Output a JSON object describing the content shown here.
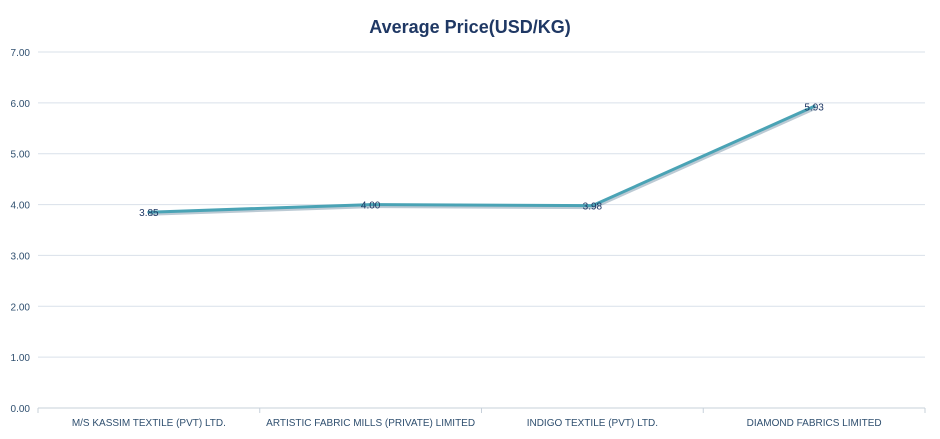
{
  "chart_data": {
    "type": "line",
    "title": "Average Price(USD/KG)",
    "xlabel": "",
    "ylabel": "",
    "categories": [
      "M/S KASSIM TEXTILE (PVT) LTD.",
      "ARTISTIC FABRIC MILLS (PRIVATE) LIMITED",
      "INDIGO TEXTILE (PVT) LTD.",
      "DIAMOND FABRICS LIMITED"
    ],
    "values": [
      3.85,
      4.0,
      3.98,
      5.93
    ],
    "data_labels": [
      "3.85",
      "4.00",
      "3.98",
      "5.93"
    ],
    "yticks": [
      "0.00",
      "1.00",
      "2.00",
      "3.00",
      "4.00",
      "5.00",
      "6.00",
      "7.00"
    ],
    "ylim": [
      0,
      7
    ],
    "grid": true,
    "legend": "none",
    "colors": {
      "line": "#4aa3b5",
      "line_shadow": "#8fa6b8",
      "title": "#1f3864",
      "grid": "#d9e1ea",
      "axis": "#c7d0da"
    }
  }
}
